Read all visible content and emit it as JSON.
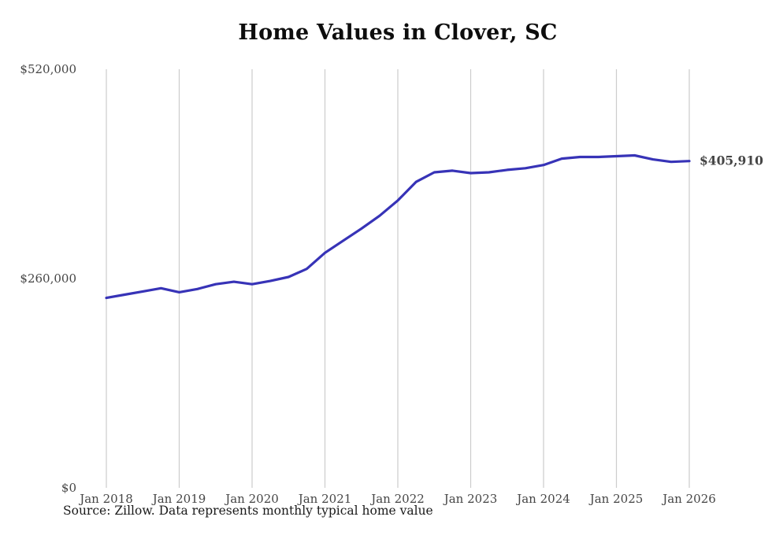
{
  "chart_data": {
    "type": "line",
    "title": "Home Values in Clover, SC",
    "source_note": "Source: Zillow. Data represents monthly typical home value",
    "series_name": "Monthly typical home value",
    "dates": [
      "2018-01",
      "2018-04",
      "2018-07",
      "2018-10",
      "2019-01",
      "2019-04",
      "2019-07",
      "2019-10",
      "2020-01",
      "2020-04",
      "2020-07",
      "2020-10",
      "2021-01",
      "2021-04",
      "2021-07",
      "2021-10",
      "2022-01",
      "2022-04",
      "2022-07",
      "2022-10",
      "2023-01",
      "2023-04",
      "2023-07",
      "2023-10",
      "2024-01",
      "2024-04",
      "2024-07",
      "2024-10",
      "2025-01",
      "2025-04",
      "2025-07",
      "2025-10",
      "2026-01"
    ],
    "values": [
      236000,
      240000,
      244000,
      248000,
      243000,
      247000,
      253000,
      256000,
      253000,
      257000,
      262000,
      272000,
      292000,
      307000,
      322000,
      338000,
      357000,
      380000,
      392000,
      394000,
      391000,
      392000,
      395000,
      397000,
      401000,
      409000,
      411000,
      411000,
      412000,
      413000,
      408000,
      405000,
      405910
    ],
    "end_label": "$405,910",
    "xlim": [
      2018,
      2026
    ],
    "ylim": [
      0,
      520000
    ],
    "x_ticks": [
      {
        "value": 2018,
        "label": "Jan 2018"
      },
      {
        "value": 2019,
        "label": "Jan 2019"
      },
      {
        "value": 2020,
        "label": "Jan 2020"
      },
      {
        "value": 2021,
        "label": "Jan 2021"
      },
      {
        "value": 2022,
        "label": "Jan 2022"
      },
      {
        "value": 2023,
        "label": "Jan 2023"
      },
      {
        "value": 2024,
        "label": "Jan 2024"
      },
      {
        "value": 2025,
        "label": "Jan 2025"
      },
      {
        "value": 2026,
        "label": "Jan 2026"
      }
    ],
    "y_ticks": [
      {
        "value": 0,
        "label": "$0"
      },
      {
        "value": 260000,
        "label": "$260,000"
      },
      {
        "value": 520000,
        "label": "$520,000"
      }
    ],
    "grid": "vertical-only",
    "legend": false,
    "xlabel": "",
    "ylabel": ""
  },
  "style": {
    "line_color": "#3733b7",
    "annotation_color": "#3733b7",
    "grid_color": "#cccccc",
    "tick_color": "#454545",
    "title_color": "#0d0d0d"
  }
}
